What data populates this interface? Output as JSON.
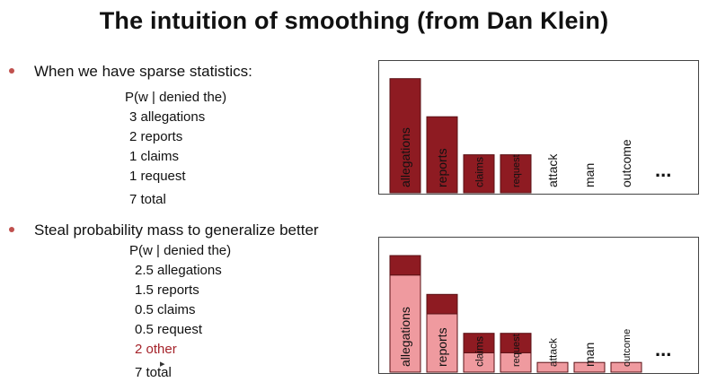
{
  "title": "The intuition of smoothing (from Dan Klein)",
  "colors": {
    "bullet": "#c0504d",
    "dark_bar": "#8e1b22",
    "light_bar": "#ef9a9f",
    "highlight_text": "#a5232a",
    "text": "#111111"
  },
  "sections": [
    {
      "bullet": "When we have sparse statistics:",
      "header": "P(w | denied the)",
      "lines": [
        "3 allegations",
        "2 reports",
        "1 claims",
        "1 request"
      ],
      "total": "7 total"
    },
    {
      "bullet": "Steal probability mass to generalize better",
      "header": "P(w | denied the)",
      "lines": [
        "2.5 allegations",
        "1.5 reports",
        "0.5 claims",
        "0.5 request"
      ],
      "highlight_line": "2 other",
      "total": "7 total"
    }
  ],
  "chart_data": [
    {
      "type": "bar",
      "categories": [
        "allegations",
        "reports",
        "claims",
        "request",
        "attack",
        "man",
        "outcome"
      ],
      "values": [
        3,
        2,
        1,
        1,
        0,
        0,
        0
      ],
      "ellipsis": "...",
      "ylim": [
        0,
        3.3
      ]
    },
    {
      "type": "bar",
      "stacked": true,
      "categories": [
        "allegations",
        "reports",
        "claims",
        "request",
        "attack",
        "man",
        "outcome"
      ],
      "series": [
        {
          "values": [
            2.5,
            1.5,
            0.5,
            0.5,
            0.25,
            0.25,
            0.25
          ]
        },
        {
          "values": [
            0.5,
            0.5,
            0.5,
            0.5,
            0,
            0,
            0
          ]
        }
      ],
      "ellipsis": "...",
      "ylim": [
        0,
        3.3
      ]
    }
  ]
}
